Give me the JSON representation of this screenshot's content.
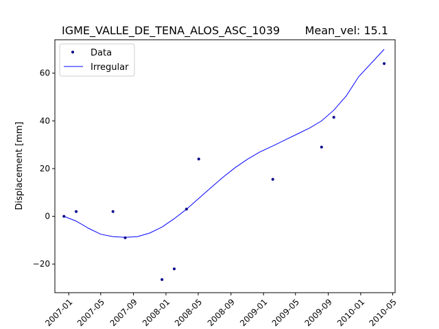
{
  "chart_data": {
    "type": "scatter",
    "title": "IGME_VALLE_DE_TENA_ALOS_ASC_1039",
    "title_right": "Mean_vel: 15.1",
    "xlabel": "",
    "ylabel": "Displacement [mm]",
    "x_axis_type": "date",
    "xlim": [
      "2006-11-10",
      "2010-05-10"
    ],
    "ylim": [
      -32,
      74
    ],
    "x_ticks": [
      "2007-01",
      "2007-05",
      "2007-09",
      "2008-01",
      "2008-05",
      "2008-09",
      "2009-01",
      "2009-05",
      "2009-09",
      "2010-01",
      "2010-05"
    ],
    "y_ticks": [
      -20,
      0,
      20,
      40,
      60
    ],
    "grid": false,
    "legend_position": "top-left",
    "series": [
      {
        "name": "Data",
        "style": "markers",
        "color": "#00008b",
        "points": [
          {
            "x": "2006-12-14",
            "y": 0
          },
          {
            "x": "2007-01-29",
            "y": 2
          },
          {
            "x": "2007-06-16",
            "y": 2
          },
          {
            "x": "2007-08-01",
            "y": -9
          },
          {
            "x": "2007-12-17",
            "y": -26.5
          },
          {
            "x": "2008-02-01",
            "y": -22
          },
          {
            "x": "2008-03-18",
            "y": 3
          },
          {
            "x": "2008-05-03",
            "y": 24
          },
          {
            "x": "2009-02-05",
            "y": 15.5
          },
          {
            "x": "2009-08-07",
            "y": 29
          },
          {
            "x": "2009-09-22",
            "y": 41.5
          },
          {
            "x": "2010-03-30",
            "y": 64
          }
        ]
      },
      {
        "name": "Irregular",
        "style": "line",
        "color": "#0000ff",
        "points": [
          {
            "x": "2006-12-14",
            "y": 0
          },
          {
            "x": "2007-01-29",
            "y": -2
          },
          {
            "x": "2007-03-16",
            "y": -5
          },
          {
            "x": "2007-05-01",
            "y": -7.5
          },
          {
            "x": "2007-06-16",
            "y": -8.5
          },
          {
            "x": "2007-08-01",
            "y": -8.8
          },
          {
            "x": "2007-09-16",
            "y": -8.5
          },
          {
            "x": "2007-11-01",
            "y": -7
          },
          {
            "x": "2007-12-17",
            "y": -4.5
          },
          {
            "x": "2008-02-01",
            "y": -1
          },
          {
            "x": "2008-03-18",
            "y": 3
          },
          {
            "x": "2008-05-03",
            "y": 7.5
          },
          {
            "x": "2008-06-18",
            "y": 12
          },
          {
            "x": "2008-08-03",
            "y": 16.5
          },
          {
            "x": "2008-09-18",
            "y": 20.5
          },
          {
            "x": "2008-11-03",
            "y": 24
          },
          {
            "x": "2008-12-19",
            "y": 27
          },
          {
            "x": "2009-02-05",
            "y": 29.5
          },
          {
            "x": "2009-03-23",
            "y": 32
          },
          {
            "x": "2009-05-08",
            "y": 34.5
          },
          {
            "x": "2009-06-23",
            "y": 37
          },
          {
            "x": "2009-08-07",
            "y": 40
          },
          {
            "x": "2009-09-22",
            "y": 44.5
          },
          {
            "x": "2009-11-08",
            "y": 50.5
          },
          {
            "x": "2009-12-24",
            "y": 58.5
          },
          {
            "x": "2010-03-30",
            "y": 70
          }
        ]
      }
    ]
  }
}
